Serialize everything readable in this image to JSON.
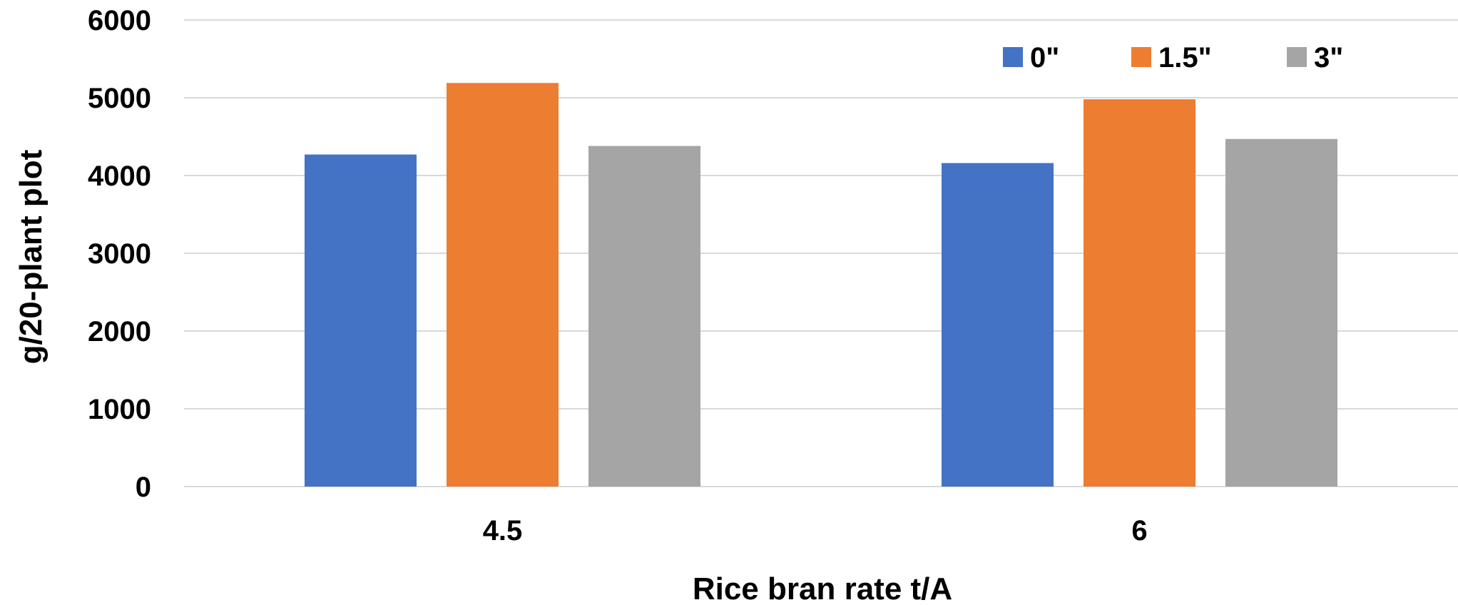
{
  "chart_data": {
    "type": "bar",
    "title": "",
    "xlabel": "Rice bran rate t/A",
    "ylabel": "g/20-plant plot",
    "categories": [
      "4.5",
      "6"
    ],
    "series": [
      {
        "name": "0\"",
        "color": "#4472C4",
        "values": [
          4270,
          4160
        ]
      },
      {
        "name": "1.5\"",
        "color": "#ED7D31",
        "values": [
          5190,
          4980
        ]
      },
      {
        "name": "3\"",
        "color": "#A5A5A5",
        "values": [
          4380,
          4470
        ]
      }
    ],
    "ylim": [
      0,
      6000
    ],
    "yticks": [
      "0",
      "1000",
      "2000",
      "3000",
      "4000",
      "5000",
      "6000"
    ],
    "grid": true,
    "legend_position": "top-right"
  }
}
